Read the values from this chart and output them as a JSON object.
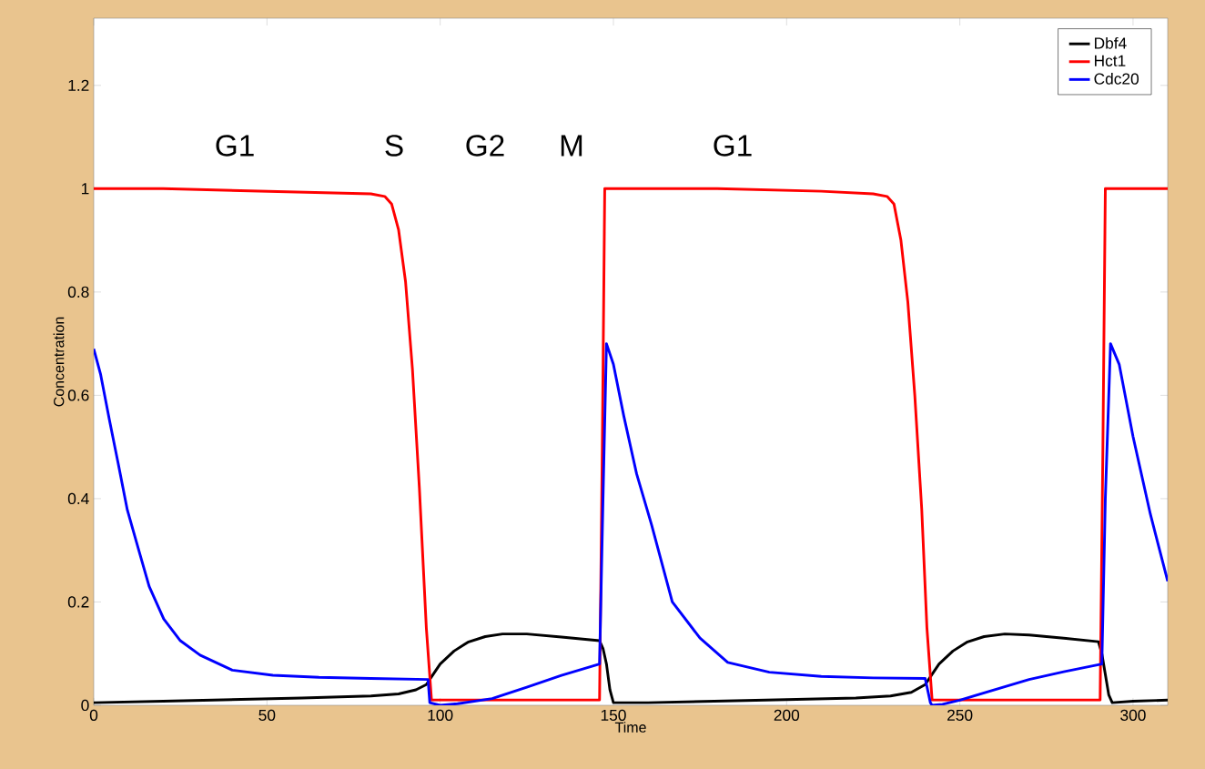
{
  "chart_data": {
    "type": "line",
    "xlabel": "Time",
    "ylabel": "Concentration",
    "xlim": [
      0,
      310
    ],
    "ylim": [
      0,
      1.33
    ],
    "xticks": [
      0,
      50,
      100,
      150,
      200,
      250,
      300
    ],
    "yticks": [
      0,
      0.2,
      0.4,
      0.6,
      0.8,
      1,
      1.2
    ],
    "grid": false,
    "legend": "top right",
    "line_style": "solid",
    "marker": "none",
    "annotations": [
      "G1",
      "S",
      "G2",
      "M",
      "G1"
    ],
    "series": [
      {
        "name": "Dbf4",
        "color": "#000000",
        "x": [
          0,
          20,
          40,
          60,
          80,
          88,
          93,
          96,
          98,
          100,
          104,
          108,
          113,
          118,
          125,
          135,
          146,
          147,
          148,
          149,
          150,
          160,
          180,
          200,
          220,
          230,
          236,
          240,
          242,
          244,
          248,
          252,
          257,
          263,
          270,
          280,
          290,
          291,
          292,
          293,
          294,
          300,
          310
        ],
        "values": [
          0.005,
          0.008,
          0.011,
          0.014,
          0.018,
          0.022,
          0.03,
          0.04,
          0.06,
          0.08,
          0.105,
          0.122,
          0.133,
          0.138,
          0.138,
          0.132,
          0.125,
          0.11,
          0.08,
          0.03,
          0.005,
          0.005,
          0.008,
          0.011,
          0.014,
          0.018,
          0.025,
          0.04,
          0.06,
          0.08,
          0.105,
          0.122,
          0.133,
          0.138,
          0.136,
          0.13,
          0.123,
          0.1,
          0.06,
          0.02,
          0.005,
          0.008,
          0.01
        ]
      },
      {
        "name": "Hct1",
        "color": "#ff0000",
        "x": [
          0,
          20,
          50,
          80,
          84,
          86,
          88,
          90,
          92,
          94,
          96,
          97.5,
          120,
          146,
          146.8,
          147.5,
          180,
          210,
          225,
          229,
          231,
          233,
          235,
          237,
          239,
          240.5,
          242,
          265,
          290.5,
          291.3,
          292,
          310
        ],
        "values": [
          1,
          1,
          0.995,
          0.99,
          0.985,
          0.97,
          0.92,
          0.82,
          0.65,
          0.42,
          0.15,
          0.01,
          0.01,
          0.01,
          0.5,
          1,
          1,
          0.995,
          0.99,
          0.985,
          0.97,
          0.9,
          0.78,
          0.6,
          0.38,
          0.15,
          0.01,
          0.01,
          0.01,
          0.5,
          1,
          1
        ]
      },
      {
        "name": "Cdc20",
        "color": "#0000ff",
        "x": [
          0,
          2,
          4.5,
          7,
          9.7,
          13,
          16,
          20.2,
          25,
          30.7,
          40,
          51.7,
          65,
          80,
          96.5,
          97,
          100,
          105,
          115,
          125,
          135,
          146,
          147,
          148,
          150,
          153,
          156.7,
          161,
          167,
          175,
          183,
          195,
          210,
          225,
          240,
          241.5,
          242,
          245,
          250,
          260,
          270,
          280,
          291,
          292,
          293.5,
          296,
          300,
          305,
          310
        ],
        "values": [
          0.69,
          0.64,
          0.553,
          0.47,
          0.378,
          0.3,
          0.23,
          0.167,
          0.125,
          0.097,
          0.068,
          0.058,
          0.054,
          0.052,
          0.05,
          0.005,
          0.0,
          0.003,
          0.013,
          0.035,
          0.058,
          0.08,
          0.4,
          0.7,
          0.66,
          0.56,
          0.448,
          0.35,
          0.2,
          0.13,
          0.083,
          0.064,
          0.056,
          0.053,
          0.052,
          0.005,
          0.0,
          0.002,
          0.01,
          0.03,
          0.05,
          0.065,
          0.08,
          0.4,
          0.7,
          0.66,
          0.52,
          0.37,
          0.24
        ]
      }
    ]
  }
}
